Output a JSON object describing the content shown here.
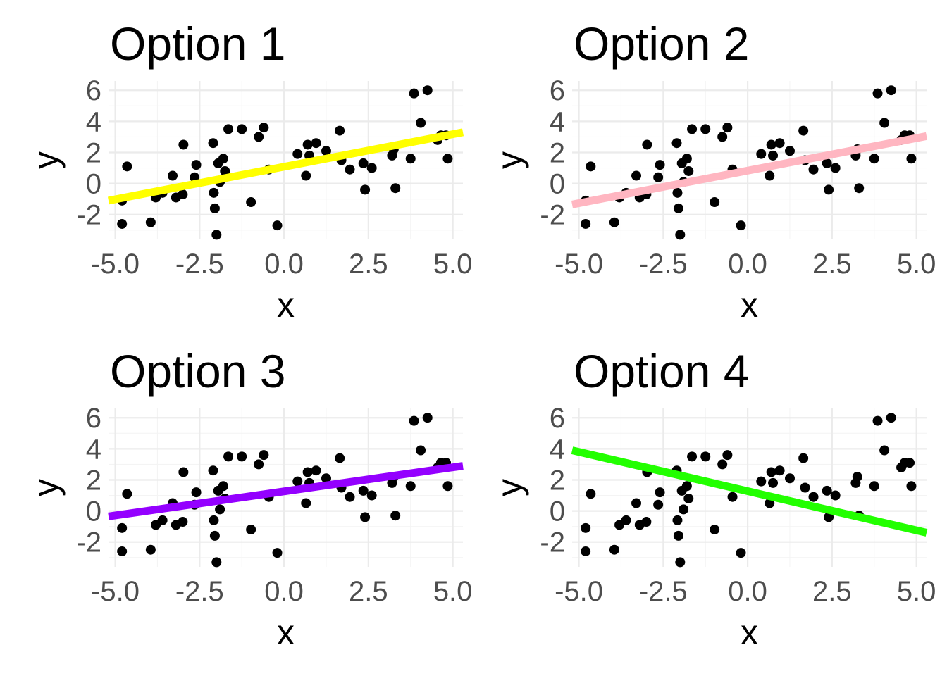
{
  "chart_data": [
    {
      "type": "scatter",
      "title": "Option 1",
      "xlabel": "x",
      "ylabel": "y",
      "xlim": [
        -5.2,
        5.3
      ],
      "ylim": [
        -3.6,
        6.6
      ],
      "x_ticks": [
        "-5.0",
        "-2.5",
        "0.0",
        "2.5",
        "5.0"
      ],
      "y_ticks": [
        "-2",
        "0",
        "2",
        "4",
        "6"
      ],
      "grid": true,
      "fit_line": {
        "x": [
          -5.2,
          5.3
        ],
        "y": [
          -1.1,
          3.3
        ],
        "color": "#FFFF00"
      }
    },
    {
      "type": "scatter",
      "title": "Option 2",
      "xlabel": "x",
      "ylabel": "y",
      "xlim": [
        -5.2,
        5.3
      ],
      "ylim": [
        -3.6,
        6.6
      ],
      "x_ticks": [
        "-5.0",
        "-2.5",
        "0.0",
        "2.5",
        "5.0"
      ],
      "y_ticks": [
        "-2",
        "0",
        "2",
        "4",
        "6"
      ],
      "grid": true,
      "fit_line": {
        "x": [
          -5.2,
          5.3
        ],
        "y": [
          -1.35,
          3.05
        ],
        "color": "#FFB6C1"
      }
    },
    {
      "type": "scatter",
      "title": "Option 3",
      "xlabel": "x",
      "ylabel": "y",
      "xlim": [
        -5.2,
        5.3
      ],
      "ylim": [
        -3.6,
        6.6
      ],
      "x_ticks": [
        "-5.0",
        "-2.5",
        "0.0",
        "2.5",
        "5.0"
      ],
      "y_ticks": [
        "-2",
        "0",
        "2",
        "4",
        "6"
      ],
      "grid": true,
      "fit_line": {
        "x": [
          -5.2,
          5.3
        ],
        "y": [
          -0.35,
          2.9
        ],
        "color": "#9400FF"
      }
    },
    {
      "type": "scatter",
      "title": "Option 4",
      "xlabel": "x",
      "ylabel": "y",
      "xlim": [
        -5.2,
        5.3
      ],
      "ylim": [
        -3.6,
        6.6
      ],
      "x_ticks": [
        "-5.0",
        "-2.5",
        "0.0",
        "2.5",
        "5.0"
      ],
      "y_ticks": [
        "-2",
        "0",
        "2",
        "4",
        "6"
      ],
      "grid": true,
      "fit_line": {
        "x": [
          -5.2,
          5.3
        ],
        "y": [
          3.9,
          -1.4
        ],
        "color": "#22FF00"
      }
    }
  ],
  "points": {
    "x": [
      -4.8,
      -4.8,
      -4.65,
      -3.95,
      -3.8,
      -3.6,
      -3.3,
      -3.2,
      -3.0,
      -2.98,
      -2.65,
      -2.6,
      -2.1,
      -2.08,
      -2.05,
      -2.0,
      -1.95,
      -1.9,
      -1.8,
      -1.75,
      -1.65,
      -1.25,
      -0.98,
      -0.75,
      -0.6,
      -0.45,
      -0.2,
      0.4,
      0.65,
      0.7,
      0.75,
      0.95,
      1.25,
      1.65,
      1.7,
      1.95,
      2.35,
      2.4,
      2.6,
      3.2,
      3.25,
      3.3,
      3.75,
      3.85,
      4.05,
      4.25,
      4.55,
      4.65,
      4.8,
      4.85
    ],
    "y": [
      -1.1,
      -2.6,
      1.1,
      -2.5,
      -0.9,
      -0.6,
      0.5,
      -0.9,
      -0.7,
      2.5,
      0.4,
      1.2,
      2.6,
      -0.6,
      -1.6,
      -3.3,
      1.3,
      0.1,
      1.6,
      0.8,
      3.5,
      3.5,
      -1.2,
      3.0,
      3.6,
      0.9,
      -2.7,
      1.9,
      0.5,
      2.5,
      1.8,
      2.6,
      2.1,
      3.4,
      1.5,
      0.9,
      1.3,
      -0.4,
      1.0,
      1.8,
      2.2,
      -0.3,
      1.6,
      5.8,
      3.9,
      6.0,
      2.8,
      3.1,
      3.1,
      1.6
    ]
  }
}
